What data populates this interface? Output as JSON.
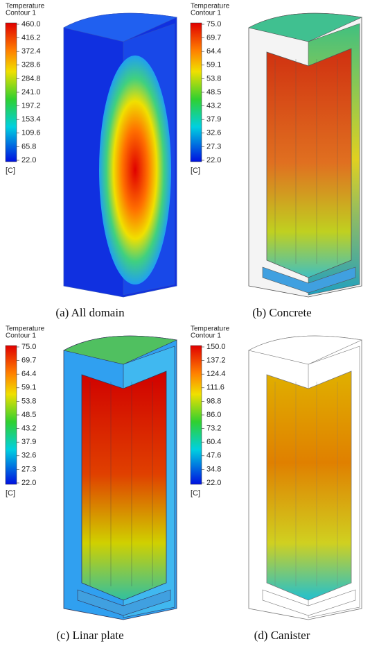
{
  "panels": [
    {
      "legend_title": [
        "Temperature",
        "Contour 1"
      ],
      "ticks": [
        "460.0",
        "416.2",
        "372.4",
        "328.6",
        "284.8",
        "241.0",
        "197.2",
        "153.4",
        "109.6",
        "65.8",
        "22.0"
      ],
      "unit": "[C]",
      "caption": "(a) All domain"
    },
    {
      "legend_title": [
        "Temperature",
        "Contour 1"
      ],
      "ticks": [
        "75.0",
        "69.7",
        "64.4",
        "59.1",
        "53.8",
        "48.5",
        "43.2",
        "37.9",
        "32.6",
        "27.3",
        "22.0"
      ],
      "unit": "[C]",
      "caption": "(b) Concrete"
    },
    {
      "legend_title": [
        "Temperature",
        "Contour 1"
      ],
      "ticks": [
        "75.0",
        "69.7",
        "64.4",
        "59.1",
        "53.8",
        "48.5",
        "43.2",
        "37.9",
        "32.6",
        "27.3",
        "22.0"
      ],
      "unit": "[C]",
      "caption": "(c) Linar plate"
    },
    {
      "legend_title": [
        "Temperature",
        "Contour 1"
      ],
      "ticks": [
        "150.0",
        "137.2",
        "124.4",
        "111.6",
        "98.8",
        "86.0",
        "73.2",
        "60.4",
        "47.6",
        "34.8",
        "22.0"
      ],
      "unit": "[C]",
      "caption": "(d) Canister"
    }
  ]
}
